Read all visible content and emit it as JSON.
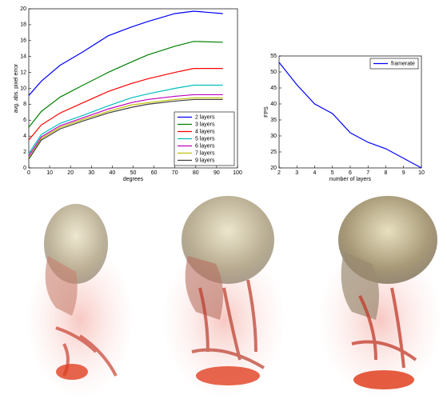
{
  "chart_data": [
    {
      "type": "line",
      "xlabel": "degrees",
      "ylabel": "avg. abs. pixel error",
      "x": [
        0,
        6,
        15,
        26,
        38,
        49,
        57,
        70,
        79,
        93
      ],
      "xlim": [
        0,
        100
      ],
      "xticks": [
        0,
        10,
        20,
        30,
        40,
        50,
        60,
        70,
        80,
        90,
        100
      ],
      "ylim": [
        0,
        20
      ],
      "yticks": [
        0,
        2,
        4,
        6,
        8,
        10,
        12,
        14,
        16,
        18,
        20
      ],
      "legend": "lower right",
      "series": [
        {
          "name": "2 layers",
          "color": "#0000ff",
          "values": [
            9.1,
            10.9,
            12.9,
            14.6,
            16.6,
            17.7,
            18.4,
            19.4,
            19.7,
            19.4
          ]
        },
        {
          "name": "3 layers",
          "color": "#008000",
          "values": [
            5.1,
            7.1,
            8.9,
            10.4,
            12.0,
            13.3,
            14.2,
            15.3,
            15.9,
            15.8
          ]
        },
        {
          "name": "4 layers",
          "color": "#ff0000",
          "values": [
            3.5,
            5.4,
            6.9,
            8.2,
            9.6,
            10.6,
            11.2,
            12.0,
            12.5,
            12.5
          ]
        },
        {
          "name": "5 layers",
          "color": "#00bfbf",
          "values": [
            1.8,
            4.2,
            5.6,
            6.6,
            7.8,
            8.8,
            9.3,
            10.0,
            10.4,
            10.4
          ]
        },
        {
          "name": "6 layers",
          "color": "#bf00bf",
          "values": [
            1.5,
            3.9,
            5.3,
            6.3,
            7.4,
            8.2,
            8.6,
            9.0,
            9.2,
            9.2
          ]
        },
        {
          "name": "7 layers",
          "color": "#bfbf00",
          "values": [
            1.2,
            3.7,
            5.1,
            6.1,
            7.1,
            7.9,
            8.2,
            8.6,
            8.8,
            8.8
          ]
        },
        {
          "name": "9 layers",
          "color": "#404040",
          "values": [
            1.1,
            3.5,
            4.9,
            5.9,
            6.9,
            7.6,
            8.0,
            8.4,
            8.6,
            8.6
          ]
        }
      ]
    },
    {
      "type": "line",
      "xlabel": "number of layers",
      "ylabel": "FPS",
      "x": [
        2,
        3,
        4,
        5,
        6,
        7,
        8,
        9,
        10
      ],
      "xlim": [
        2,
        10
      ],
      "xticks": [
        2,
        3,
        4,
        5,
        6,
        7,
        8,
        9,
        10
      ],
      "ylim": [
        20,
        55
      ],
      "yticks": [
        20,
        25,
        30,
        35,
        40,
        45,
        50,
        55
      ],
      "legend": "upper right",
      "series": [
        {
          "name": "framerate",
          "color": "#0000ff",
          "values": [
            53,
            46,
            40,
            37,
            31,
            28,
            26,
            23,
            20
          ]
        }
      ]
    }
  ]
}
